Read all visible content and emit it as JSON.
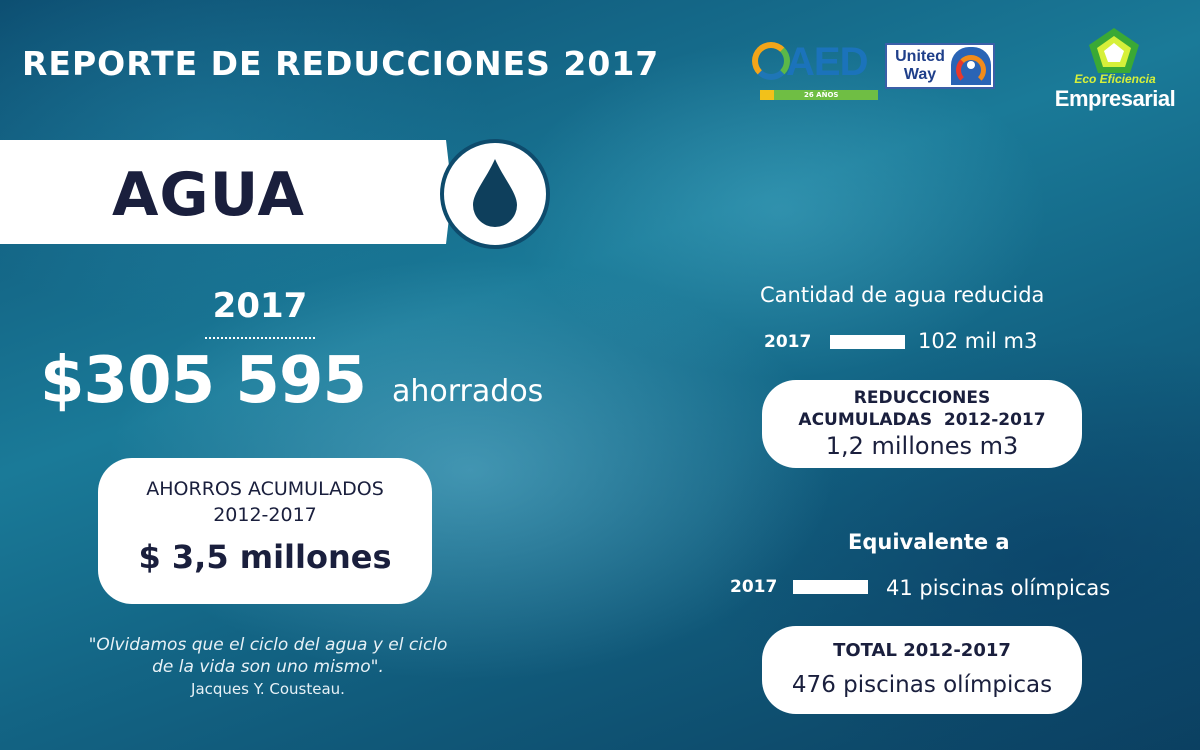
{
  "header": {
    "title": "REPORTE DE REDUCCIONES 2017"
  },
  "logos": {
    "aed": {
      "text": "AED",
      "years": "26 AÑOS"
    },
    "united_way": {
      "text": "United Way"
    },
    "eco": {
      "line1": "Eco Eficiencia",
      "line2": "Empresarial"
    }
  },
  "banner": {
    "label": "AGUA",
    "icon": "water-drop-icon"
  },
  "savings": {
    "year": "2017",
    "amount": "$305 595",
    "word": "ahorrados"
  },
  "accumulated_savings": {
    "title_line1": "AHORROS ACUMULADOS",
    "title_line2": "2012-2017",
    "amount": "$ 3,5 millones"
  },
  "quote": {
    "line1": "\"Olvidamos que el ciclo del agua y el ciclo",
    "line2": "de la vida son uno mismo\".",
    "author": "Jacques Y. Cousteau."
  },
  "water_reduced": {
    "heading": "Cantidad de agua reducida",
    "year": "2017",
    "value": "102 mil m3",
    "amount": 102
  },
  "accumulated_reductions": {
    "title_line1": "REDUCCIONES",
    "title_line2": "ACUMULADAS  2012-2017",
    "value": "1,2 millones m3"
  },
  "equivalent": {
    "heading": "Equivalente a",
    "year": "2017",
    "value": "41 piscinas olímpicas",
    "pools": 41
  },
  "total": {
    "title": "TOTAL 2012-2017",
    "value": "476 piscinas olímpicas"
  },
  "colors": {
    "dark_navy": "#1a1f3d",
    "water_blue": "#136585"
  }
}
